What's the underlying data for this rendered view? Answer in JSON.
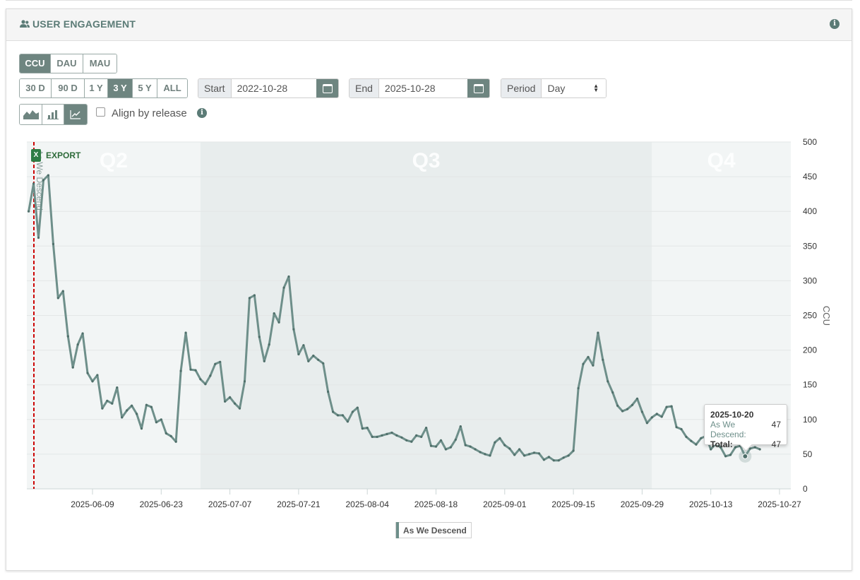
{
  "header": {
    "title": "USER ENGAGEMENT",
    "title_icon": "users-icon",
    "info_icon": "info-icon"
  },
  "metric_tabs": [
    {
      "label": "CCU",
      "active": true
    },
    {
      "label": "DAU",
      "active": false
    },
    {
      "label": "MAU",
      "active": false
    }
  ],
  "range_tabs": [
    {
      "label": "30 D",
      "active": false
    },
    {
      "label": "90 D",
      "active": false
    },
    {
      "label": "1 Y",
      "active": false
    },
    {
      "label": "3 Y",
      "active": true
    },
    {
      "label": "5 Y",
      "active": false
    },
    {
      "label": "ALL",
      "active": false
    }
  ],
  "start": {
    "label": "Start",
    "value": "2022-10-28"
  },
  "end": {
    "label": "End",
    "value": "2025-10-28"
  },
  "period": {
    "label": "Period",
    "value": "Day"
  },
  "chart_types": [
    {
      "icon": "area-chart-icon",
      "active": false
    },
    {
      "icon": "bar-chart-icon",
      "active": false
    },
    {
      "icon": "line-chart-icon",
      "active": true
    }
  ],
  "align": {
    "label": "Align by release",
    "checked": false
  },
  "export_label": "EXPORT",
  "release_label": "As We Descend",
  "tooltip": {
    "date": "2025-10-20",
    "series": "As We Descend:",
    "value": "47",
    "total_label": "Total:",
    "total": "47"
  },
  "colors": {
    "line": "#6e8f8a",
    "accent": "#5b7b76",
    "release_marker": "#cc0000",
    "band_light": "#f2f5f5",
    "band_dark": "#e8eded"
  },
  "chart_data": {
    "type": "line",
    "title": "",
    "xlabel": "",
    "ylabel": "CCU",
    "ylim": [
      0,
      500
    ],
    "yticks": [
      0,
      50,
      100,
      150,
      200,
      250,
      300,
      350,
      400,
      450,
      500
    ],
    "x_tick_labels": [
      "2025-06-09",
      "2025-06-23",
      "2025-07-07",
      "2025-07-21",
      "2025-08-04",
      "2025-08-18",
      "2025-09-01",
      "2025-09-15",
      "2025-09-29",
      "2025-10-13",
      "2025-10-27"
    ],
    "quarter_labels": [
      "Q2",
      "Q3",
      "Q4"
    ],
    "grid": true,
    "legend": "bottom-center",
    "series": [
      {
        "name": "As We Descend",
        "start_date": "2025-05-27",
        "values": [
          400,
          440,
          362,
          445,
          452,
          353,
          275,
          285,
          220,
          175,
          208,
          224,
          167,
          155,
          164,
          116,
          127,
          123,
          146,
          103,
          113,
          120,
          108,
          87,
          121,
          118,
          96,
          100,
          80,
          76,
          68,
          170,
          225,
          172,
          171,
          158,
          151,
          163,
          180,
          183,
          126,
          132,
          123,
          116,
          155,
          275,
          279,
          219,
          184,
          208,
          253,
          240,
          290,
          306,
          230,
          194,
          207,
          184,
          192,
          186,
          181,
          140,
          111,
          106,
          106,
          97,
          111,
          117,
          87,
          88,
          75,
          75,
          77,
          79,
          81,
          77,
          74,
          70,
          68,
          77,
          75,
          88,
          62,
          61,
          70,
          57,
          60,
          71,
          90,
          63,
          61,
          57,
          53,
          50,
          48,
          67,
          73,
          63,
          58,
          49,
          57,
          48,
          50,
          52,
          51,
          42,
          46,
          41,
          41,
          45,
          48,
          55,
          145,
          180,
          190,
          178,
          225,
          186,
          155,
          139,
          120,
          112,
          115,
          121,
          130,
          111,
          95,
          103,
          108,
          104,
          118,
          119,
          89,
          86,
          75,
          69,
          64,
          73,
          76,
          57,
          65,
          60,
          47,
          49,
          60,
          62,
          47,
          58,
          60,
          57
        ]
      }
    ]
  }
}
